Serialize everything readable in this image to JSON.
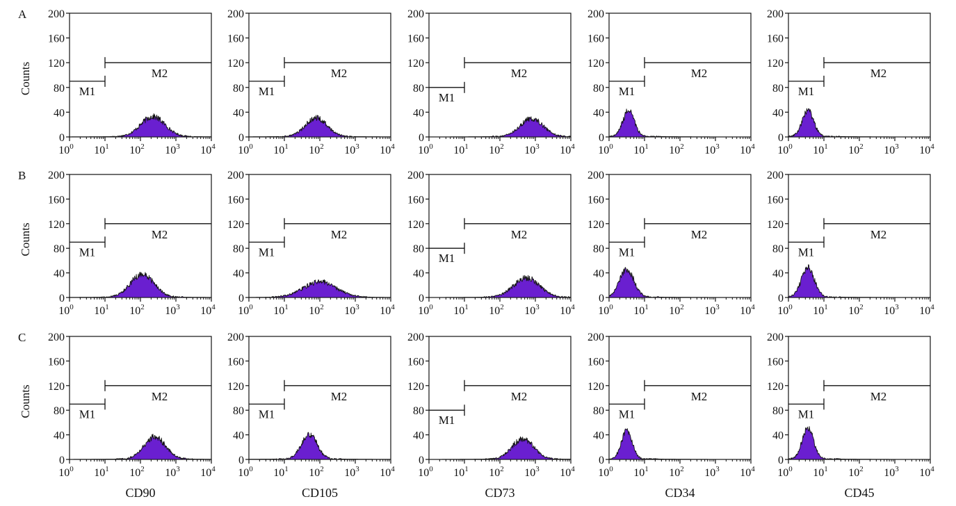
{
  "chart_data": {
    "type": "histogram-grid",
    "title": "",
    "ylabel": "Counts",
    "ylim": [
      0,
      200
    ],
    "yticks": [
      "0",
      "40",
      "80",
      "120",
      "160",
      "200"
    ],
    "xscale": "log",
    "xlim_log10": [
      0,
      4
    ],
    "xtick_base": "10",
    "xtick_exponents": [
      "0",
      "1",
      "2",
      "3",
      "4"
    ],
    "markers": {
      "m1_label": "M1",
      "m2_label": "M2",
      "m1_range_log10": [
        0,
        1
      ],
      "m2_range_log10": [
        1,
        4
      ]
    },
    "rows": [
      "A",
      "B",
      "C"
    ],
    "columns": [
      "CD90",
      "CD105",
      "CD73",
      "CD34",
      "CD45"
    ],
    "panels": [
      {
        "row": "A",
        "marker": "CD90",
        "peak_log10": 2.35,
        "peak_count": 32,
        "width": 0.34,
        "m1_count": 90,
        "m2_count": 120
      },
      {
        "row": "A",
        "marker": "CD105",
        "peak_log10": 1.9,
        "peak_count": 30,
        "width": 0.3,
        "m1_count": 90,
        "m2_count": 120
      },
      {
        "row": "A",
        "marker": "CD73",
        "peak_log10": 2.9,
        "peak_count": 29,
        "width": 0.32,
        "m1_count": 80,
        "m2_count": 120
      },
      {
        "row": "A",
        "marker": "CD34",
        "peak_log10": 0.55,
        "peak_count": 42,
        "width": 0.16,
        "m1_count": 90,
        "m2_count": 120
      },
      {
        "row": "A",
        "marker": "CD45",
        "peak_log10": 0.55,
        "peak_count": 42,
        "width": 0.16,
        "m1_count": 90,
        "m2_count": 120
      },
      {
        "row": "B",
        "marker": "CD90",
        "peak_log10": 2.05,
        "peak_count": 37,
        "width": 0.33,
        "m1_count": 90,
        "m2_count": 120
      },
      {
        "row": "B",
        "marker": "CD105",
        "peak_log10": 2.0,
        "peak_count": 25,
        "width": 0.45,
        "m1_count": 90,
        "m2_count": 120
      },
      {
        "row": "B",
        "marker": "CD73",
        "peak_log10": 2.75,
        "peak_count": 31,
        "width": 0.36,
        "m1_count": 80,
        "m2_count": 120
      },
      {
        "row": "B",
        "marker": "CD34",
        "peak_log10": 0.5,
        "peak_count": 45,
        "width": 0.2,
        "m1_count": 90,
        "m2_count": 120
      },
      {
        "row": "B",
        "marker": "CD45",
        "peak_log10": 0.55,
        "peak_count": 48,
        "width": 0.18,
        "m1_count": 90,
        "m2_count": 120
      },
      {
        "row": "C",
        "marker": "CD90",
        "peak_log10": 2.4,
        "peak_count": 36,
        "width": 0.3,
        "m1_count": 90,
        "m2_count": 120
      },
      {
        "row": "C",
        "marker": "CD105",
        "peak_log10": 1.7,
        "peak_count": 40,
        "width": 0.22,
        "m1_count": 90,
        "m2_count": 120
      },
      {
        "row": "C",
        "marker": "CD73",
        "peak_log10": 2.65,
        "peak_count": 33,
        "width": 0.3,
        "m1_count": 80,
        "m2_count": 120
      },
      {
        "row": "C",
        "marker": "CD34",
        "peak_log10": 0.5,
        "peak_count": 46,
        "width": 0.15,
        "m1_count": 90,
        "m2_count": 120
      },
      {
        "row": "C",
        "marker": "CD45",
        "peak_log10": 0.55,
        "peak_count": 50,
        "width": 0.16,
        "m1_count": 90,
        "m2_count": 120
      }
    ]
  },
  "colors": {
    "histogram_fill": "#6a1fd0",
    "histogram_edge": "#141414",
    "axis": "#111111",
    "background": "#ffffff"
  }
}
